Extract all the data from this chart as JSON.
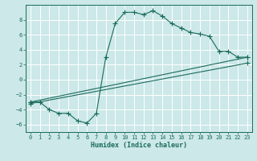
{
  "xlabel": "Humidex (Indice chaleur)",
  "bg_color": "#cce8e8",
  "grid_color": "#ffffff",
  "line_color": "#1a6b5a",
  "xlim": [
    -0.5,
    23.5
  ],
  "ylim": [
    -7,
    10
  ],
  "xticks": [
    0,
    1,
    2,
    3,
    4,
    5,
    6,
    7,
    8,
    9,
    10,
    11,
    12,
    13,
    14,
    15,
    16,
    17,
    18,
    19,
    20,
    21,
    22,
    23
  ],
  "yticks": [
    -6,
    -4,
    -2,
    0,
    2,
    4,
    6,
    8
  ],
  "curve": {
    "x": [
      0,
      1,
      2,
      3,
      4,
      5,
      6,
      7,
      8,
      9,
      10,
      11,
      12,
      13,
      14,
      15,
      16,
      17,
      18,
      19,
      20,
      21,
      22,
      23
    ],
    "y": [
      -3,
      -3,
      -4,
      -4.5,
      -4.5,
      -5.5,
      -5.8,
      -4.5,
      3.0,
      7.5,
      9.0,
      9.0,
      8.7,
      9.2,
      8.5,
      7.5,
      6.9,
      6.3,
      6.1,
      5.8,
      3.8,
      3.8,
      3.0,
      3.0
    ]
  },
  "line1": {
    "x": [
      0,
      23
    ],
    "y": [
      -3.0,
      3.0
    ]
  },
  "line2": {
    "x": [
      0,
      23
    ],
    "y": [
      -3.2,
      2.2
    ]
  }
}
